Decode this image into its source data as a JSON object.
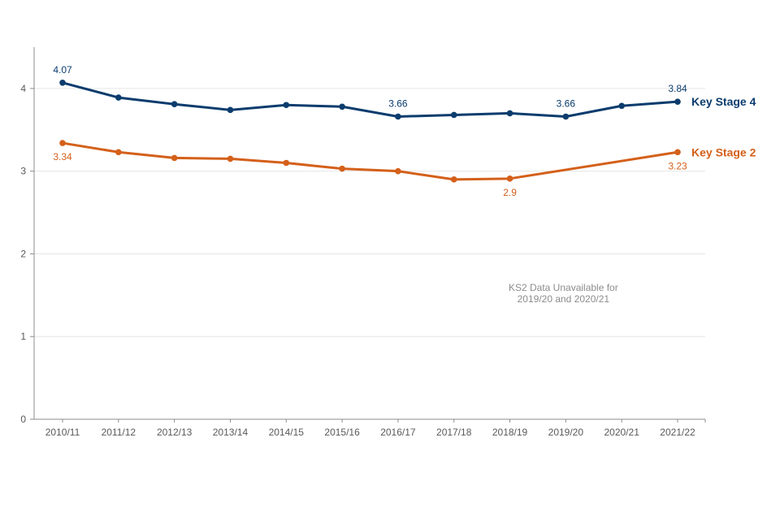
{
  "chart_data": {
    "type": "line",
    "title": "",
    "xlabel": "",
    "ylabel": "",
    "ylim": [
      0,
      4.5
    ],
    "yticks": [
      0,
      1,
      2,
      3,
      4
    ],
    "grid": true,
    "legend": "inline-right",
    "categories": [
      "2010/11",
      "2011/12",
      "2012/13",
      "2013/14",
      "2014/15",
      "2015/16",
      "2016/17",
      "2017/18",
      "2018/19",
      "2019/20",
      "2020/21",
      "2021/22"
    ],
    "series": [
      {
        "name": "Key Stage 4",
        "color": "#0b3c6d",
        "values": [
          4.07,
          3.89,
          3.81,
          3.74,
          3.8,
          3.78,
          3.66,
          3.68,
          3.7,
          3.66,
          3.79,
          3.84
        ],
        "labels": [
          {
            "index": 0,
            "text": "4.07",
            "position": "above"
          },
          {
            "index": 6,
            "text": "3.66",
            "position": "above"
          },
          {
            "index": 9,
            "text": "3.66",
            "position": "above"
          },
          {
            "index": 11,
            "text": "3.84",
            "position": "above"
          }
        ]
      },
      {
        "name": "Key Stage 2",
        "color": "#d4601a",
        "values": [
          3.34,
          3.23,
          3.16,
          3.15,
          3.1,
          3.03,
          3.0,
          2.9,
          2.91,
          null,
          null,
          3.23
        ],
        "labels": [
          {
            "index": 0,
            "text": "3.34",
            "position": "below"
          },
          {
            "index": 8,
            "text": "2.9",
            "position": "below"
          },
          {
            "index": 11,
            "text": "3.23",
            "position": "below"
          }
        ]
      }
    ],
    "annotations": [
      {
        "lines": [
          "KS2 Data Unavailable for",
          "2019/20 and 2020/21"
        ],
        "x_category": "2019/20",
        "y_value": 1.55
      }
    ]
  }
}
